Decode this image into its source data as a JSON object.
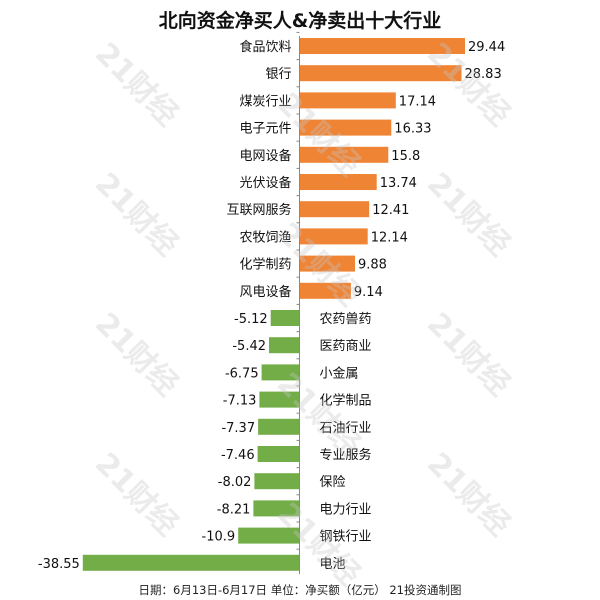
{
  "chart_data": {
    "type": "bar",
    "orientation": "horizontal",
    "title": "北向资金净买人&净卖出十大行业",
    "categories": [
      "食品饮料",
      "银行",
      "煤炭行业",
      "电子元件",
      "电网设备",
      "光伏设备",
      "互联网服务",
      "农牧饲渔",
      "化学制药",
      "风电设备",
      "农药兽药",
      "医药商业",
      "小金属",
      "化学制品",
      "石油行业",
      "专业服务",
      "保险",
      "电力行业",
      "钢铁行业",
      "电池"
    ],
    "value_labels": [
      "29.44",
      "28.83",
      "17.14",
      "16.33",
      "15.8",
      "13.74",
      "12.41",
      "12.14",
      "9.88",
      "9.14",
      "-5.12",
      "-5.42",
      "-6.75",
      "-7.13",
      "-7.37",
      "-7.46",
      "-8.02",
      "-8.21",
      "-10.9",
      "-38.55"
    ],
    "values": [
      29.44,
      28.83,
      17.14,
      16.33,
      15.8,
      13.74,
      12.41,
      12.14,
      9.88,
      9.14,
      -5.12,
      -5.42,
      -6.75,
      -7.13,
      -7.37,
      -7.46,
      -8.02,
      -8.21,
      -10.9,
      -38.55
    ],
    "colors": {
      "positive": "#ee8434",
      "negative": "#72ad47"
    },
    "grid": false,
    "legend": "none",
    "footnote": "日期：6月13日-6月17日 单位：净买额（亿元） 21投资通制图"
  },
  "watermark": "21财经"
}
